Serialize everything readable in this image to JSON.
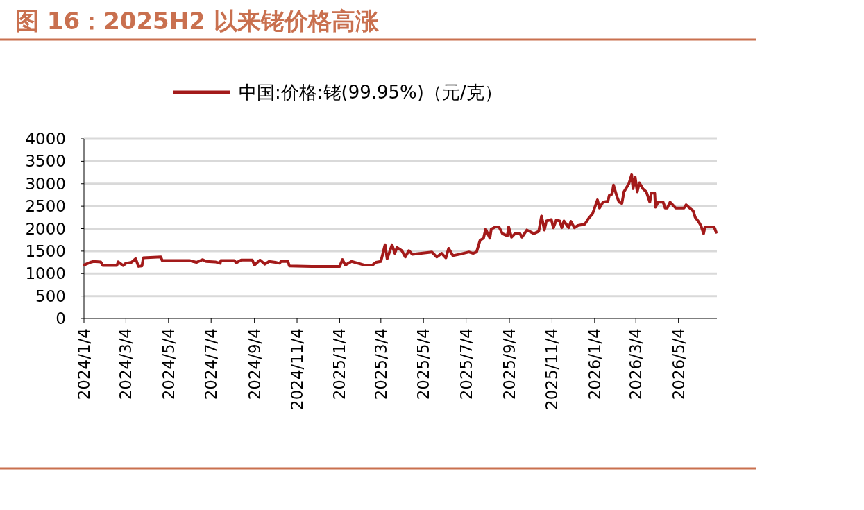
{
  "chart_data": {
    "type": "line",
    "title": "图 16：2025H2 以来铑价格高涨",
    "x": [
      "2024-01-04",
      "2024-01-13",
      "2024-01-18",
      "2024-01-28",
      "2024-01-31",
      "2024-02-20",
      "2024-02-22",
      "2024-02-29",
      "2024-03-04",
      "2024-03-12",
      "2024-03-18",
      "2024-03-22",
      "2024-03-27",
      "2024-03-29",
      "2024-04-23",
      "2024-04-25",
      "2024-06-03",
      "2024-06-13",
      "2024-06-22",
      "2024-06-27",
      "2024-07-10",
      "2024-07-17",
      "2024-07-18",
      "2024-08-06",
      "2024-08-09",
      "2024-08-16",
      "2024-09-01",
      "2024-09-04",
      "2024-09-12",
      "2024-09-19",
      "2024-09-25",
      "2024-10-04",
      "2024-10-10",
      "2024-10-12",
      "2024-10-22",
      "2024-10-24",
      "2024-11-25",
      "2025-01-04",
      "2025-01-08",
      "2025-01-12",
      "2025-01-21",
      "2025-02-08",
      "2025-02-20",
      "2025-02-25",
      "2025-03-04",
      "2025-03-10",
      "2025-03-13",
      "2025-03-20",
      "2025-03-24",
      "2025-03-27",
      "2025-04-03",
      "2025-04-08",
      "2025-04-13",
      "2025-04-18",
      "2025-05-16",
      "2025-05-23",
      "2025-05-30",
      "2025-06-05",
      "2025-06-09",
      "2025-06-15",
      "2025-06-25",
      "2025-07-08",
      "2025-07-14",
      "2025-07-19",
      "2025-07-24",
      "2025-07-29",
      "2025-08-01",
      "2025-08-07",
      "2025-08-09",
      "2025-08-15",
      "2025-08-20",
      "2025-08-25",
      "2025-09-01",
      "2025-09-03",
      "2025-09-07",
      "2025-09-12",
      "2025-09-19",
      "2025-09-22",
      "2025-09-29",
      "2025-10-09",
      "2025-10-16",
      "2025-10-20",
      "2025-10-24",
      "2025-10-27",
      "2025-11-03",
      "2025-11-06",
      "2025-11-10",
      "2025-11-15",
      "2025-11-18",
      "2025-11-21",
      "2025-11-28",
      "2025-12-01",
      "2025-12-06",
      "2025-12-11",
      "2025-12-21",
      "2025-12-26",
      "2026-01-01",
      "2026-01-08",
      "2026-01-11",
      "2026-01-16",
      "2026-01-23",
      "2026-01-25",
      "2026-01-29",
      "2026-01-31",
      "2026-02-05",
      "2026-02-08",
      "2026-02-12",
      "2026-02-15",
      "2026-02-22",
      "2026-02-26",
      "2026-02-28",
      "2026-03-03",
      "2026-03-06",
      "2026-03-09",
      "2026-03-14",
      "2026-03-19",
      "2026-03-24",
      "2026-03-26",
      "2026-03-31",
      "2026-04-01",
      "2026-04-05",
      "2026-04-12",
      "2026-04-15",
      "2026-04-18",
      "2026-04-22",
      "2026-04-30",
      "2026-05-12",
      "2026-05-15",
      "2026-05-20",
      "2026-05-25",
      "2026-05-28",
      "2026-06-02",
      "2026-06-05",
      "2026-06-09",
      "2026-06-11",
      "2026-06-24",
      "2026-06-27"
    ],
    "series": [
      {
        "name": "中国:价格:铑(99.95%)（元/克）",
        "color": "#a31a1a",
        "values": [
          1190,
          1250,
          1270,
          1260,
          1180,
          1180,
          1260,
          1180,
          1230,
          1250,
          1330,
          1160,
          1170,
          1350,
          1370,
          1290,
          1290,
          1250,
          1310,
          1270,
          1260,
          1230,
          1290,
          1290,
          1240,
          1300,
          1300,
          1190,
          1300,
          1210,
          1270,
          1250,
          1230,
          1270,
          1270,
          1170,
          1160,
          1160,
          1310,
          1190,
          1270,
          1190,
          1190,
          1250,
          1270,
          1640,
          1330,
          1640,
          1450,
          1580,
          1510,
          1370,
          1510,
          1430,
          1480,
          1370,
          1450,
          1350,
          1560,
          1400,
          1430,
          1480,
          1450,
          1480,
          1740,
          1790,
          1990,
          1790,
          1990,
          2040,
          2040,
          1890,
          1840,
          2040,
          1810,
          1890,
          1890,
          1810,
          1970,
          1890,
          1940,
          2280,
          1970,
          2170,
          2200,
          2020,
          2190,
          2170,
          2020,
          2170,
          2020,
          2160,
          2020,
          2070,
          2100,
          2220,
          2330,
          2640,
          2460,
          2590,
          2610,
          2740,
          2770,
          2970,
          2710,
          2590,
          2560,
          2820,
          3000,
          3200,
          2890,
          3150,
          2820,
          3020,
          2890,
          2820,
          2590,
          2790,
          2790,
          2480,
          2590,
          2590,
          2460,
          2460,
          2590,
          2460,
          2460,
          2530,
          2460,
          2400,
          2250,
          2150,
          2070,
          1890,
          2040,
          2040,
          1920
        ]
      }
    ],
    "xlim": [
      "2024-01-04",
      "2026-06-28"
    ],
    "xticks": [
      {
        "value": "2024-01-04",
        "label": "2024/1/4"
      },
      {
        "value": "2024-03-04",
        "label": "2024/3/4"
      },
      {
        "value": "2024-05-04",
        "label": "2024/5/4"
      },
      {
        "value": "2024-07-04",
        "label": "2024/7/4"
      },
      {
        "value": "2024-09-04",
        "label": "2024/9/4"
      },
      {
        "value": "2024-11-04",
        "label": "2024/11/4"
      },
      {
        "value": "2025-01-04",
        "label": "2025/1/4"
      },
      {
        "value": "2025-03-04",
        "label": "2025/3/4"
      },
      {
        "value": "2025-05-04",
        "label": "2025/5/4"
      },
      {
        "value": "2025-07-04",
        "label": "2025/7/4"
      },
      {
        "value": "2025-09-04",
        "label": "2025/9/4"
      },
      {
        "value": "2025-11-04",
        "label": "2025/11/4"
      },
      {
        "value": "2026-01-04",
        "label": "2026/1/4"
      },
      {
        "value": "2026-03-04",
        "label": "2026/3/4"
      },
      {
        "value": "2026-05-04",
        "label": "2026/5/4"
      }
    ],
    "ylim": [
      0,
      4000
    ],
    "yticks": [
      0,
      500,
      1000,
      1500,
      2000,
      2500,
      3000,
      3500,
      4000
    ],
    "grid": "y",
    "legend": "top"
  }
}
